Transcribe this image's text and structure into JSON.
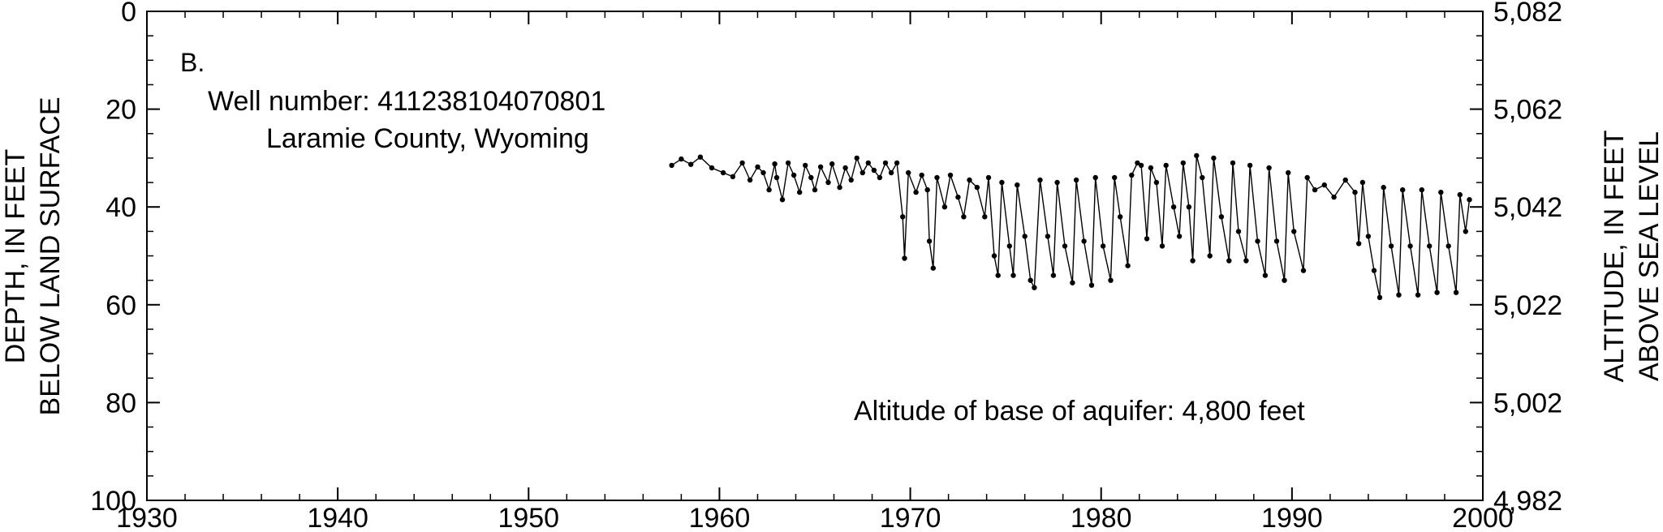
{
  "chart_data": {
    "type": "line",
    "panel_label": "B.",
    "annotations": {
      "well_number": "Well number: 411238104070801",
      "location": "Laramie County, Wyoming",
      "aquifer_base": "Altitude of base of aquifer: 4,800 feet"
    },
    "xlabel": "",
    "ylabel_left": [
      "DEPTH, IN FEET",
      "BELOW LAND SURFACE"
    ],
    "ylabel_right": [
      "ALTITUDE, IN FEET",
      "ABOVE SEA LEVEL"
    ],
    "xlim": [
      1930,
      2000
    ],
    "ylim_left": [
      0,
      100
    ],
    "y_left_inverted": true,
    "ylim_right": [
      4982,
      5082
    ],
    "x_ticks": [
      "1930",
      "1940",
      "1950",
      "1960",
      "1970",
      "1980",
      "1990",
      "2000"
    ],
    "y_left_ticks": [
      "0",
      "20",
      "40",
      "60",
      "80",
      "100"
    ],
    "y_right_ticks": [
      "5,082",
      "5,062",
      "5,042",
      "5,022",
      "5,002",
      "4,982"
    ],
    "grid": false,
    "series": [
      {
        "color": "#000000",
        "marker": "dot",
        "points": [
          [
            1957.5,
            31.5
          ],
          [
            1958.0,
            30.2
          ],
          [
            1958.5,
            31.3
          ],
          [
            1959.0,
            29.8
          ],
          [
            1959.6,
            32.0
          ],
          [
            1960.2,
            33.0
          ],
          [
            1960.7,
            33.8
          ],
          [
            1961.2,
            31.0
          ],
          [
            1961.6,
            34.5
          ],
          [
            1962.0,
            31.8
          ],
          [
            1962.3,
            33.0
          ],
          [
            1962.6,
            36.5
          ],
          [
            1962.9,
            31.2
          ],
          [
            1963.0,
            34.0
          ],
          [
            1963.3,
            38.5
          ],
          [
            1963.6,
            31.0
          ],
          [
            1963.9,
            33.5
          ],
          [
            1964.2,
            37.0
          ],
          [
            1964.5,
            31.5
          ],
          [
            1964.8,
            34.0
          ],
          [
            1965.0,
            36.5
          ],
          [
            1965.3,
            31.8
          ],
          [
            1965.7,
            35.0
          ],
          [
            1965.9,
            31.2
          ],
          [
            1966.3,
            36.0
          ],
          [
            1966.6,
            32.0
          ],
          [
            1966.9,
            34.5
          ],
          [
            1967.2,
            30.0
          ],
          [
            1967.5,
            33.0
          ],
          [
            1967.8,
            31.0
          ],
          [
            1968.1,
            32.5
          ],
          [
            1968.4,
            34.0
          ],
          [
            1968.7,
            31.0
          ],
          [
            1969.0,
            33.0
          ],
          [
            1969.3,
            31.0
          ],
          [
            1969.6,
            42.0
          ],
          [
            1969.7,
            50.5
          ],
          [
            1969.9,
            33.0
          ],
          [
            1970.3,
            37.0
          ],
          [
            1970.6,
            33.5
          ],
          [
            1970.9,
            36.5
          ],
          [
            1971.0,
            47.0
          ],
          [
            1971.2,
            52.5
          ],
          [
            1971.4,
            34.0
          ],
          [
            1971.8,
            40.0
          ],
          [
            1972.1,
            33.5
          ],
          [
            1972.5,
            38.0
          ],
          [
            1972.8,
            42.0
          ],
          [
            1973.1,
            34.5
          ],
          [
            1973.5,
            36.0
          ],
          [
            1973.9,
            42.0
          ],
          [
            1974.1,
            34.0
          ],
          [
            1974.4,
            50.0
          ],
          [
            1974.6,
            54.0
          ],
          [
            1974.8,
            35.0
          ],
          [
            1975.2,
            48.0
          ],
          [
            1975.4,
            54.0
          ],
          [
            1975.6,
            35.5
          ],
          [
            1976.0,
            46.0
          ],
          [
            1976.3,
            55.0
          ],
          [
            1976.5,
            56.5
          ],
          [
            1976.8,
            34.5
          ],
          [
            1977.2,
            46.0
          ],
          [
            1977.5,
            54.0
          ],
          [
            1977.7,
            35.0
          ],
          [
            1978.1,
            48.0
          ],
          [
            1978.5,
            55.5
          ],
          [
            1978.7,
            34.5
          ],
          [
            1979.1,
            47.0
          ],
          [
            1979.5,
            56.0
          ],
          [
            1979.7,
            34.0
          ],
          [
            1980.1,
            48.0
          ],
          [
            1980.5,
            55.0
          ],
          [
            1980.7,
            34.0
          ],
          [
            1981.0,
            42.0
          ],
          [
            1981.4,
            52.0
          ],
          [
            1981.6,
            33.5
          ],
          [
            1981.9,
            31.0
          ],
          [
            1982.1,
            31.5
          ],
          [
            1982.4,
            46.5
          ],
          [
            1982.6,
            32.0
          ],
          [
            1982.9,
            35.0
          ],
          [
            1983.2,
            48.0
          ],
          [
            1983.4,
            31.5
          ],
          [
            1983.8,
            40.0
          ],
          [
            1984.1,
            46.0
          ],
          [
            1984.3,
            31.0
          ],
          [
            1984.6,
            40.0
          ],
          [
            1984.8,
            51.0
          ],
          [
            1985.0,
            29.5
          ],
          [
            1985.3,
            34.0
          ],
          [
            1985.7,
            50.0
          ],
          [
            1985.9,
            30.0
          ],
          [
            1986.3,
            42.0
          ],
          [
            1986.7,
            51.0
          ],
          [
            1986.9,
            31.0
          ],
          [
            1987.2,
            45.0
          ],
          [
            1987.6,
            51.0
          ],
          [
            1987.8,
            31.5
          ],
          [
            1988.2,
            47.0
          ],
          [
            1988.6,
            54.0
          ],
          [
            1988.8,
            32.0
          ],
          [
            1989.2,
            47.0
          ],
          [
            1989.6,
            55.0
          ],
          [
            1989.8,
            33.0
          ],
          [
            1990.1,
            45.0
          ],
          [
            1990.6,
            53.0
          ],
          [
            1990.8,
            34.0
          ],
          [
            1991.2,
            36.5
          ],
          [
            1991.7,
            35.5
          ],
          [
            1992.2,
            38.0
          ],
          [
            1992.8,
            34.5
          ],
          [
            1993.3,
            37.0
          ],
          [
            1993.5,
            47.5
          ],
          [
            1993.7,
            35.0
          ],
          [
            1994.0,
            46.0
          ],
          [
            1994.3,
            53.0
          ],
          [
            1994.6,
            58.5
          ],
          [
            1994.8,
            36.0
          ],
          [
            1995.2,
            48.0
          ],
          [
            1995.6,
            58.0
          ],
          [
            1995.8,
            36.5
          ],
          [
            1996.2,
            48.0
          ],
          [
            1996.6,
            58.0
          ],
          [
            1996.8,
            36.5
          ],
          [
            1997.2,
            48.0
          ],
          [
            1997.6,
            57.5
          ],
          [
            1997.8,
            37.0
          ],
          [
            1998.2,
            48.0
          ],
          [
            1998.6,
            57.5
          ],
          [
            1998.8,
            37.5
          ],
          [
            1999.1,
            45.0
          ],
          [
            1999.3,
            38.5
          ]
        ]
      }
    ]
  }
}
